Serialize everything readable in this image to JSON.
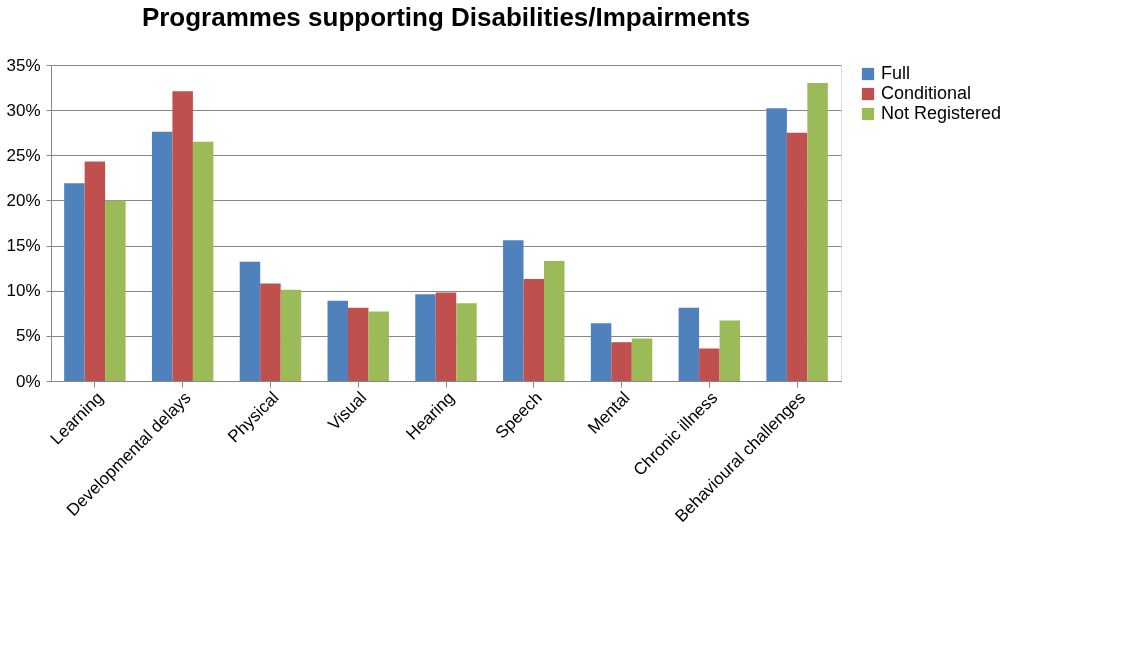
{
  "chart_data": {
    "type": "bar",
    "title": "Programmes supporting Disabilities/Impairments",
    "categories": [
      "Learning",
      "Developmental delays",
      "Physical",
      "Visual",
      "Hearing",
      "Speech",
      "Mental",
      "Chronic illness",
      "Behavioural challenges"
    ],
    "series": [
      {
        "name": "Full",
        "color": "#4f81bd",
        "values": [
          21.9,
          27.6,
          13.2,
          8.9,
          9.6,
          15.6,
          6.4,
          8.1,
          30.2
        ]
      },
      {
        "name": "Conditional",
        "color": "#c0504d",
        "values": [
          24.3,
          32.1,
          10.8,
          8.1,
          9.8,
          11.3,
          4.3,
          3.6,
          27.5
        ]
      },
      {
        "name": "Not Registered",
        "color": "#9bbb59",
        "values": [
          20.0,
          26.5,
          10.1,
          7.7,
          8.6,
          13.3,
          4.7,
          6.7,
          33.0
        ]
      }
    ],
    "ylim": [
      0,
      35
    ],
    "yticks": [
      {
        "value": 0,
        "label": "0%"
      },
      {
        "value": 5,
        "label": "5%"
      },
      {
        "value": 10,
        "label": "10%"
      },
      {
        "value": 15,
        "label": "15%"
      },
      {
        "value": 20,
        "label": "20%"
      },
      {
        "value": 25,
        "label": "25%"
      },
      {
        "value": 30,
        "label": "30%"
      },
      {
        "value": 35,
        "label": "35%"
      }
    ],
    "grid": "y",
    "legend": "right"
  }
}
